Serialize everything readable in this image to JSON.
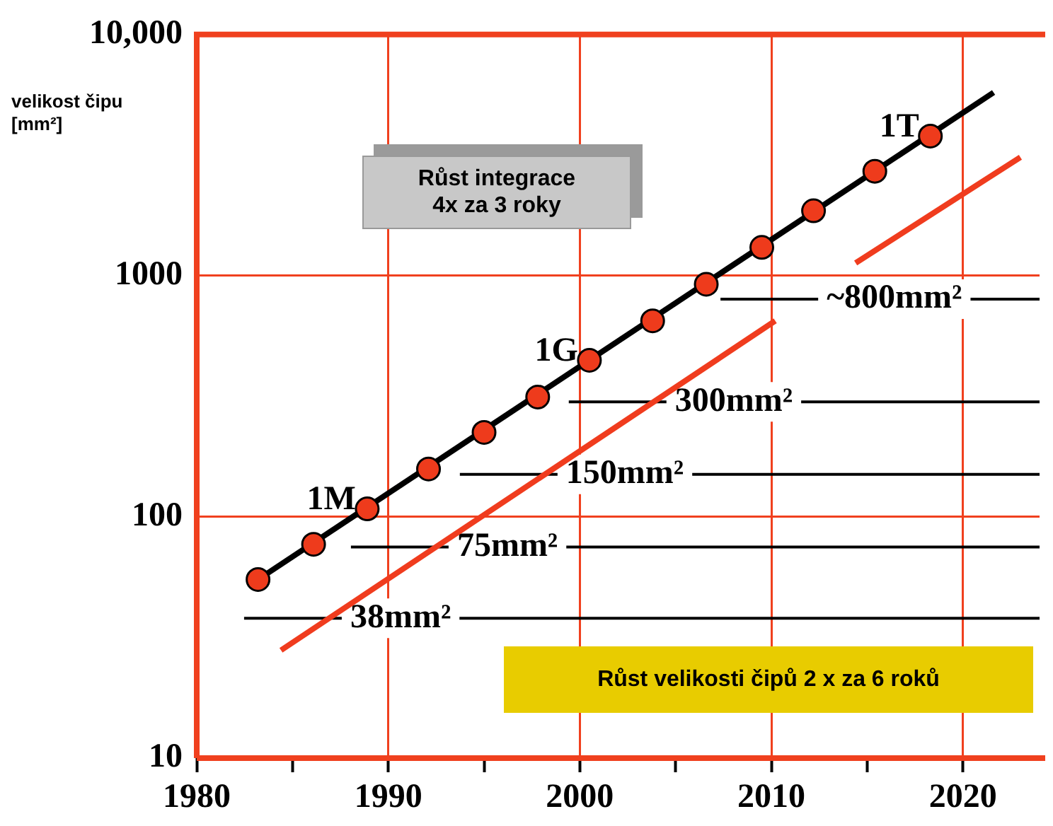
{
  "chart_data": {
    "type": "line",
    "ylabel": "velikost čipu [mm²]",
    "xlim": [
      1980,
      2024
    ],
    "xticks": [
      1980,
      {
        "value": 1985,
        "label": null
      },
      1990,
      {
        "value": 1995,
        "label": null
      },
      2000,
      {
        "value": 2005,
        "label": null
      },
      2010,
      {
        "value": 2015,
        "label": null
      },
      2020
    ],
    "ylim": [
      10,
      10000
    ],
    "yticks": [
      10,
      100,
      1000,
      {
        "value": 10000,
        "label": "10,000"
      }
    ],
    "log": "y",
    "grid": true,
    "legend": false,
    "series": [
      {
        "type": "scatter",
        "marker": "circle",
        "color": "#ee3b1c",
        "x": [
          1983.2,
          1986.1,
          1988.9,
          1992.1,
          1995.0,
          1997.8,
          2000.5,
          2003.8,
          2006.6,
          2009.5,
          2012.2,
          2015.4,
          2018.3
        ],
        "values": [
          55,
          77,
          108,
          158,
          224,
          314,
          446,
          650,
          922,
          1310,
          1858,
          2710,
          3793
        ]
      },
      {
        "type": "line",
        "marker": "none",
        "color": "#000000",
        "x": [
          1983.2,
          2021.6
        ],
        "values": [
          55,
          5750
        ]
      },
      {
        "type": "line",
        "marker": "none",
        "color": "#f03c1e",
        "x": [
          1984.4,
          2010.2,
          2012,
          2014.4,
          2023
        ],
        "values": [
          28,
          650,
          null,
          1130,
          3100
        ]
      }
    ],
    "ref_lines": [
      {
        "axis": "y",
        "value": 800,
        "label": "~800mm²"
      },
      {
        "axis": "y",
        "value": 300,
        "label": "300mm²"
      },
      {
        "axis": "y",
        "value": 150,
        "label": "150mm²"
      },
      {
        "axis": "y",
        "value": 75,
        "label": "75mm²"
      },
      {
        "axis": "y",
        "value": 38,
        "label": "38mm²"
      }
    ],
    "annotations": [
      "Růst integrace 4x za 3 roky",
      "Růst velikosti čipů 2 x za 6 roků",
      {
        "text": "1M",
        "x": 1988.9,
        "y": 108
      },
      {
        "text": "1G",
        "x": 2000.5,
        "y": 446
      },
      {
        "text": "1T",
        "x": 2018.3,
        "y": 3793
      }
    ]
  }
}
